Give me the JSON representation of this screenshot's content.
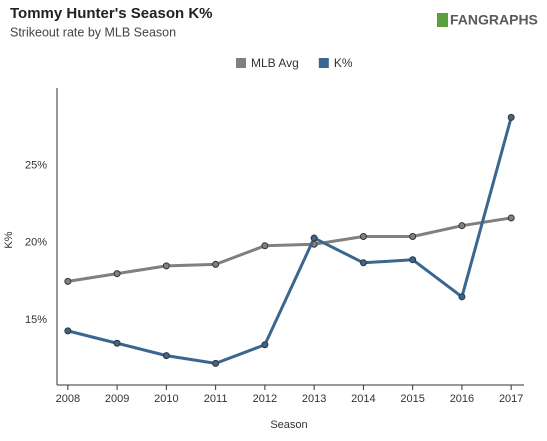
{
  "chart_data": {
    "type": "line",
    "title": "Tommy Hunter's Season K%",
    "subtitle": "Strikeout rate by MLB Season",
    "logo": "FANGRAPHS",
    "x_label": "Season",
    "y_label": "K%",
    "x": [
      2008,
      2009,
      2010,
      2011,
      2012,
      2013,
      2014,
      2015,
      2016,
      2017
    ],
    "xlim": [
      2007.78,
      2017.26
    ],
    "xticks": [
      2008,
      2009,
      2010,
      2011,
      2012,
      2013,
      2014,
      2015,
      2016,
      2017
    ],
    "ylim": [
      10.8,
      30
    ],
    "yticks": [
      {
        "value": 15,
        "label": "15%"
      },
      {
        "value": 20,
        "label": "20%"
      },
      {
        "value": 25,
        "label": "25%"
      }
    ],
    "series": [
      {
        "name": "MLB Avg",
        "color": "#808080",
        "values": [
          17.5,
          18.0,
          18.5,
          18.6,
          19.8,
          19.9,
          20.4,
          20.4,
          21.1,
          21.6
        ]
      },
      {
        "name": "K%",
        "color": "#3a6690",
        "values": [
          14.3,
          13.5,
          12.7,
          12.2,
          13.4,
          20.3,
          18.7,
          18.9,
          16.5,
          28.1
        ]
      }
    ]
  }
}
